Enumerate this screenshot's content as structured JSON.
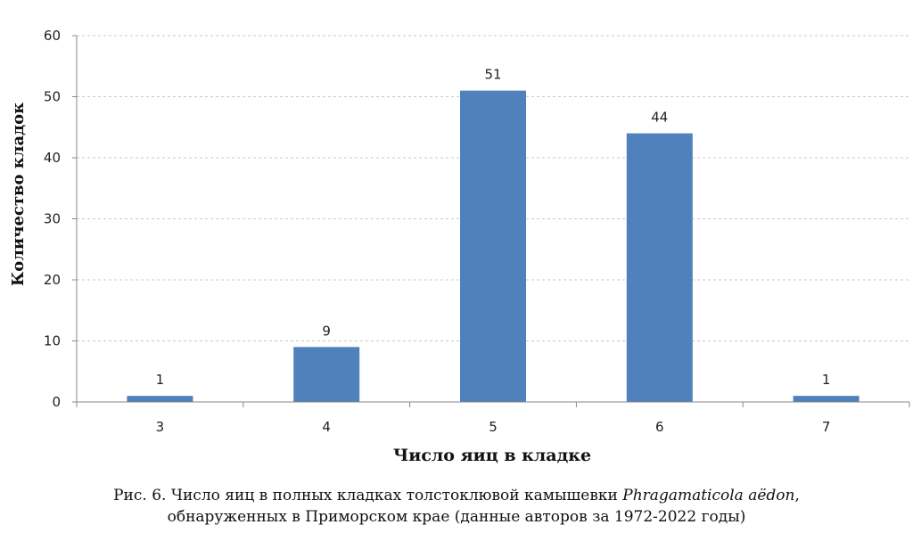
{
  "chart_data": {
    "type": "bar",
    "categories": [
      "3",
      "4",
      "5",
      "6",
      "7"
    ],
    "values": [
      1,
      9,
      51,
      44,
      1
    ],
    "data_labels": [
      "1",
      "9",
      "51",
      "44",
      "1"
    ],
    "xlabel": "Число яиц в кладке",
    "ylabel": "Количество кладок",
    "ylim": [
      0,
      60
    ],
    "yticks": [
      "0",
      "10",
      "20",
      "30",
      "40",
      "50",
      "60"
    ],
    "grid": true,
    "bar_color": "#4f81bd"
  },
  "caption": {
    "line1_prefix": "Рис. 6. Число яиц в полных кладках толстоклювой камышевки ",
    "line1_species": "Phragamaticola aëdon",
    "line1_suffix": ",",
    "line2": "обнаруженных в Приморском крае (данные авторов за 1972-2022 годы)"
  }
}
